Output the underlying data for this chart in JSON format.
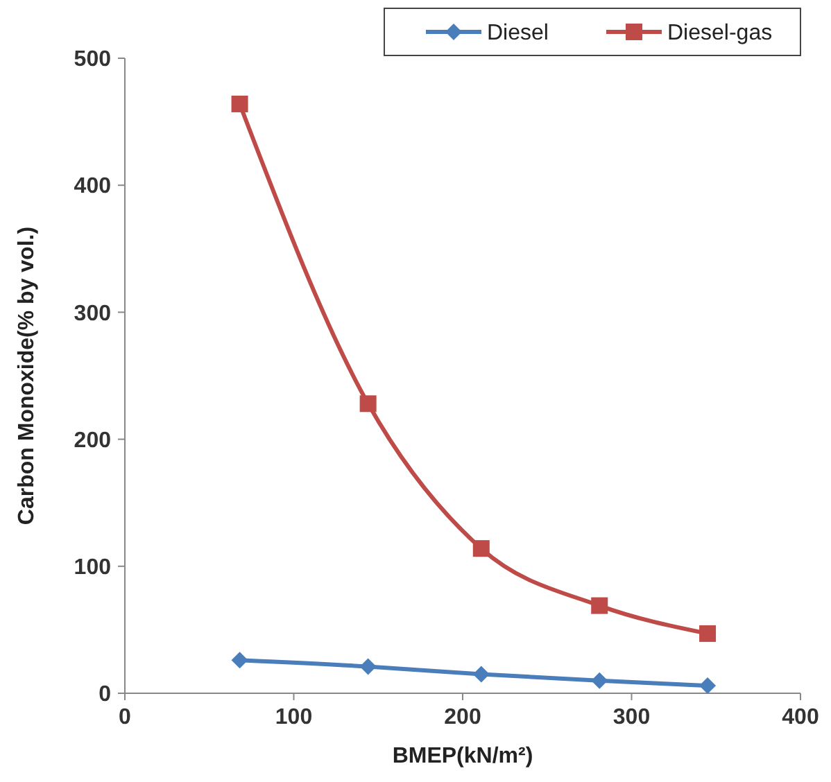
{
  "chart_data": {
    "type": "line",
    "xlabel": "BMEP(kN/m²)",
    "ylabel": "Carbon Monoxide(% by vol.)",
    "x": [
      68,
      144,
      211,
      281,
      345
    ],
    "series": [
      {
        "name": "Diesel",
        "color": "#4a7ebb",
        "marker": "diamond",
        "values": [
          26,
          21,
          15,
          10,
          6
        ]
      },
      {
        "name": "Diesel-gas",
        "color": "#be4b48",
        "marker": "square",
        "values": [
          464,
          228,
          114,
          69,
          47
        ]
      }
    ],
    "xlim": [
      0,
      400
    ],
    "xticks": [
      0,
      100,
      200,
      300,
      400
    ],
    "ylim": [
      0,
      500
    ],
    "yticks": [
      0,
      100,
      200,
      300,
      400,
      500
    ],
    "grid": false,
    "legend": "top right",
    "line_style": "solid"
  }
}
